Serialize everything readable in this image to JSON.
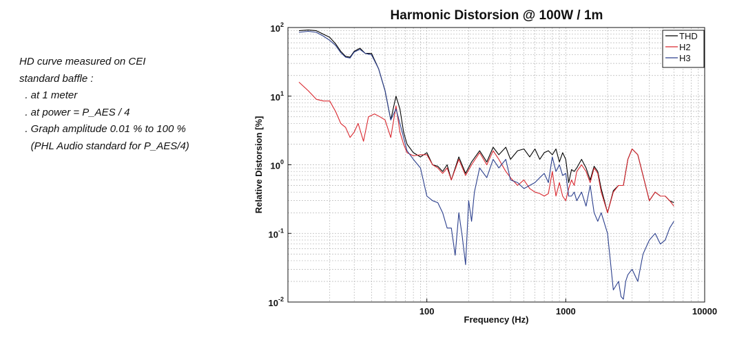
{
  "notes": [
    "HD curve measured on CEI",
    "standard baffle :",
    "  . at 1 meter",
    "  . at power = P_AES / 4",
    "  . Graph amplitude 0.01 % to 100 %",
    "    (PHL Audio standard for P_AES/4)"
  ],
  "chart_data": {
    "type": "line",
    "title": "Harmonic Distorsion @ 100W / 1m",
    "xlabel": "Frequency (Hz)",
    "ylabel": "Relative Distorsion [%]",
    "x_scale": "log",
    "y_scale": "log",
    "xlim": [
      10,
      10000
    ],
    "ylim": [
      0.01,
      100
    ],
    "x_ticks": [
      "100",
      "1000",
      "10000"
    ],
    "y_ticks": [
      {
        "base": "10",
        "exp": "2"
      },
      {
        "base": "10",
        "exp": "1"
      },
      {
        "base": "10",
        "exp": "0"
      },
      {
        "base": "10",
        "exp": "-1"
      },
      {
        "base": "10",
        "exp": "-2"
      }
    ],
    "grid": true,
    "legend_position": "top-right",
    "series": [
      {
        "name": "THD",
        "color": "#000000",
        "x": [
          12,
          14,
          16,
          18,
          20,
          22,
          24,
          26,
          28,
          30,
          33,
          36,
          40,
          45,
          50,
          55,
          60,
          64,
          68,
          72,
          80,
          90,
          100,
          110,
          120,
          130,
          140,
          150,
          170,
          190,
          210,
          240,
          270,
          300,
          330,
          370,
          400,
          450,
          500,
          550,
          600,
          650,
          700,
          750,
          800,
          850,
          900,
          950,
          1000,
          1050,
          1100,
          1150,
          1200,
          1300,
          1400,
          1500,
          1600,
          1700,
          1800,
          2000,
          2200,
          2400,
          2600,
          2800,
          3000,
          3300,
          3600,
          4000,
          4400,
          4800,
          5200,
          5600,
          6000
        ],
        "values": [
          90,
          92,
          90,
          80,
          72,
          58,
          45,
          38,
          37,
          45,
          50,
          42,
          42,
          25,
          12,
          4.5,
          10,
          6.5,
          3,
          2,
          1.5,
          1.3,
          1.5,
          1.0,
          0.95,
          0.8,
          1.0,
          0.6,
          1.3,
          0.75,
          1.1,
          1.6,
          1.1,
          1.8,
          1.4,
          1.8,
          1.2,
          1.6,
          1.7,
          1.3,
          1.7,
          1.2,
          1.5,
          1.6,
          1.4,
          1.7,
          1.1,
          1.5,
          1.2,
          0.55,
          0.85,
          0.8,
          0.9,
          1.2,
          0.9,
          0.6,
          0.95,
          0.8,
          0.45,
          0.2,
          0.42,
          0.5,
          0.5,
          1.2,
          1.7,
          1.4,
          0.7,
          0.3,
          0.4,
          0.35,
          0.35,
          0.3,
          0.28
        ]
      },
      {
        "name": "H2",
        "color": "#d9272e",
        "x": [
          12,
          14,
          16,
          18,
          20,
          22,
          24,
          26,
          28,
          30,
          32,
          35,
          38,
          42,
          46,
          50,
          55,
          60,
          64,
          68,
          72,
          80,
          90,
          100,
          110,
          120,
          130,
          140,
          150,
          170,
          190,
          210,
          240,
          270,
          300,
          330,
          370,
          400,
          450,
          500,
          550,
          600,
          650,
          700,
          750,
          800,
          850,
          900,
          950,
          1000,
          1050,
          1100,
          1150,
          1200,
          1300,
          1400,
          1500,
          1600,
          1700,
          1800,
          2000,
          2200,
          2400,
          2600,
          2800,
          3000,
          3300,
          3600,
          4000,
          4400,
          4800,
          5200,
          5600,
          6000
        ],
        "values": [
          16,
          12,
          9,
          8.5,
          8.5,
          6,
          4,
          3.5,
          2.5,
          3,
          4,
          2.2,
          5,
          5.5,
          5,
          4.5,
          2.5,
          7.2,
          3,
          2,
          1.5,
          1.35,
          1.4,
          1.4,
          1.0,
          0.9,
          0.75,
          0.9,
          0.6,
          1.2,
          0.7,
          1.0,
          1.5,
          1.0,
          1.6,
          1.2,
          0.8,
          0.65,
          0.5,
          0.6,
          0.45,
          0.4,
          0.38,
          0.35,
          0.38,
          0.8,
          0.35,
          0.55,
          0.35,
          0.3,
          0.45,
          0.6,
          0.5,
          0.8,
          1.0,
          0.8,
          0.55,
          0.9,
          0.75,
          0.4,
          0.2,
          0.4,
          0.5,
          0.5,
          1.2,
          1.7,
          1.4,
          0.7,
          0.3,
          0.4,
          0.35,
          0.35,
          0.3,
          0.25
        ]
      },
      {
        "name": "H3",
        "color": "#2a3e8c",
        "x": [
          12,
          14,
          16,
          18,
          20,
          22,
          24,
          26,
          28,
          30,
          33,
          36,
          40,
          45,
          50,
          55,
          60,
          64,
          68,
          72,
          80,
          90,
          100,
          110,
          120,
          130,
          140,
          150,
          160,
          170,
          180,
          190,
          200,
          210,
          220,
          240,
          270,
          300,
          330,
          370,
          400,
          450,
          500,
          550,
          600,
          650,
          700,
          750,
          800,
          850,
          900,
          950,
          1000,
          1050,
          1100,
          1150,
          1200,
          1300,
          1400,
          1500,
          1600,
          1700,
          1800,
          2000,
          2200,
          2400,
          2500,
          2600,
          2700,
          2800,
          3000,
          3300,
          3600,
          4000,
          4400,
          4800,
          5200,
          5600,
          6000
        ],
        "values": [
          85,
          88,
          85,
          75,
          65,
          55,
          43,
          37,
          36,
          44,
          48,
          42,
          40,
          25,
          12,
          4.5,
          6.5,
          4,
          2.5,
          1.6,
          1.2,
          0.9,
          0.35,
          0.3,
          0.28,
          0.2,
          0.12,
          0.12,
          0.048,
          0.2,
          0.09,
          0.035,
          0.3,
          0.15,
          0.4,
          0.9,
          0.65,
          1.2,
          0.9,
          1.2,
          0.6,
          0.55,
          0.45,
          0.5,
          0.55,
          0.65,
          0.75,
          0.55,
          1.3,
          0.8,
          1.0,
          0.7,
          0.75,
          0.35,
          0.35,
          0.4,
          0.3,
          0.4,
          0.25,
          0.5,
          0.2,
          0.15,
          0.2,
          0.1,
          0.015,
          0.02,
          0.012,
          0.011,
          0.02,
          0.025,
          0.03,
          0.02,
          0.05,
          0.08,
          0.1,
          0.07,
          0.08,
          0.12,
          0.15
        ]
      }
    ]
  }
}
